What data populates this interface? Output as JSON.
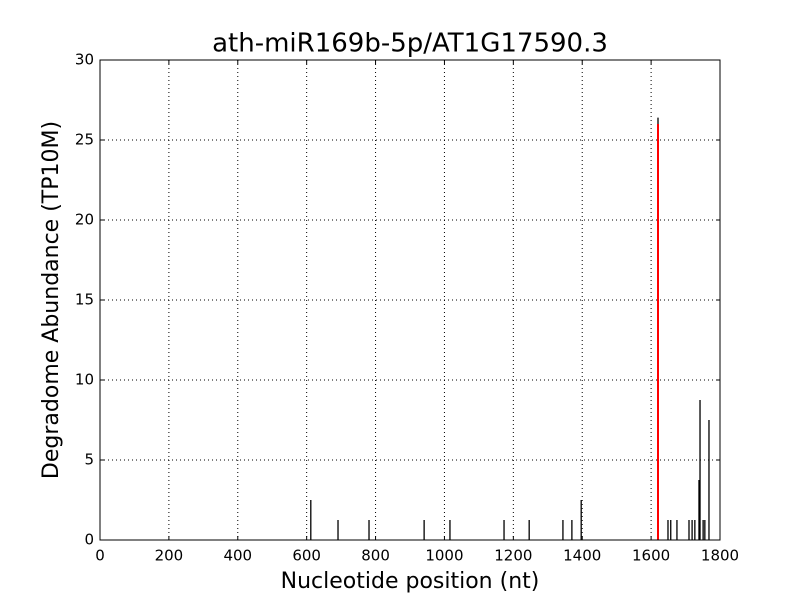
{
  "chart_data": {
    "type": "stem",
    "title": "ath-miR169b-5p/AT1G17590.3",
    "xlabel": "Nucleotide position (nt)",
    "ylabel": "Degradome Abundance (TP10M)",
    "xlim": [
      0,
      1800
    ],
    "xticks": [
      0,
      200,
      400,
      600,
      800,
      1000,
      1200,
      1400,
      1600,
      1800
    ],
    "ylim": [
      0,
      30
    ],
    "yticks": [
      0,
      5,
      10,
      15,
      20,
      25,
      30
    ],
    "grid": true,
    "series": [
      {
        "color": "#000000",
        "x": [
          612,
          691,
          781,
          941,
          1016,
          1173,
          1246,
          1344,
          1370,
          1397,
          1620,
          1649,
          1657,
          1675,
          1710,
          1719,
          1727,
          1739,
          1742,
          1751,
          1756,
          1768
        ],
        "values": [
          2.5,
          1.25,
          1.25,
          1.25,
          1.25,
          1.25,
          1.25,
          1.25,
          1.25,
          2.5,
          26.4,
          1.25,
          1.25,
          1.25,
          1.25,
          1.25,
          1.25,
          3.75,
          8.75,
          1.25,
          1.25,
          7.5
        ]
      },
      {
        "color": "#ff0000",
        "x": [
          1620
        ],
        "values": [
          26
        ]
      }
    ]
  }
}
